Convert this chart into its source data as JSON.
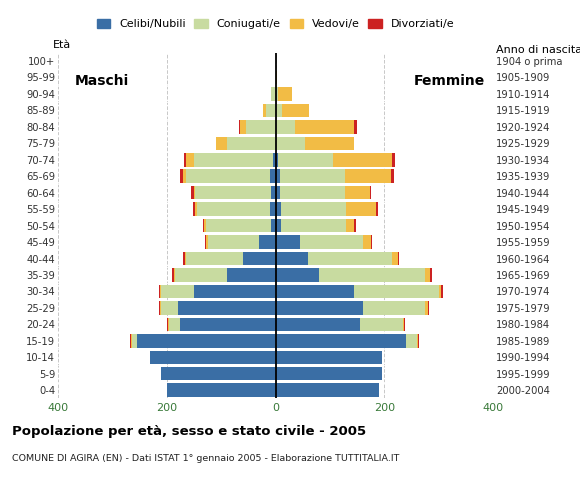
{
  "age_groups": [
    "0-4",
    "5-9",
    "10-14",
    "15-19",
    "20-24",
    "25-29",
    "30-34",
    "35-39",
    "40-44",
    "45-49",
    "50-54",
    "55-59",
    "60-64",
    "65-69",
    "70-74",
    "75-79",
    "80-84",
    "85-89",
    "90-94",
    "95-99",
    "100+"
  ],
  "birth_years": [
    "2000-2004",
    "1995-1999",
    "1990-1994",
    "1985-1989",
    "1980-1984",
    "1975-1979",
    "1970-1974",
    "1965-1969",
    "1960-1964",
    "1955-1959",
    "1950-1954",
    "1945-1949",
    "1940-1944",
    "1935-1939",
    "1930-1934",
    "1925-1929",
    "1920-1924",
    "1915-1919",
    "1910-1914",
    "1905-1909",
    "1904 o prima"
  ],
  "male_celibi": [
    200,
    210,
    230,
    255,
    175,
    180,
    150,
    90,
    60,
    30,
    8,
    10,
    8,
    10,
    5,
    0,
    0,
    0,
    0,
    0,
    0
  ],
  "male_coniugati": [
    0,
    0,
    0,
    8,
    20,
    30,
    60,
    95,
    105,
    95,
    120,
    135,
    140,
    155,
    145,
    90,
    55,
    18,
    8,
    0,
    0
  ],
  "male_vedovi": [
    0,
    0,
    0,
    2,
    2,
    2,
    2,
    2,
    2,
    2,
    3,
    3,
    2,
    5,
    15,
    20,
    10,
    5,
    0,
    0,
    0
  ],
  "male_divorziati": [
    0,
    0,
    0,
    2,
    2,
    3,
    3,
    3,
    3,
    3,
    3,
    3,
    5,
    5,
    3,
    0,
    3,
    0,
    0,
    0,
    0
  ],
  "female_celibi": [
    190,
    195,
    195,
    240,
    155,
    160,
    145,
    80,
    60,
    45,
    10,
    10,
    8,
    8,
    5,
    0,
    0,
    0,
    0,
    0,
    0
  ],
  "female_coniugati": [
    0,
    0,
    0,
    20,
    80,
    115,
    155,
    195,
    155,
    115,
    120,
    120,
    120,
    120,
    100,
    55,
    35,
    12,
    5,
    0,
    0
  ],
  "female_vedovi": [
    0,
    0,
    0,
    2,
    2,
    5,
    5,
    10,
    10,
    15,
    15,
    55,
    45,
    85,
    110,
    90,
    110,
    50,
    25,
    3,
    0
  ],
  "female_divorziati": [
    0,
    0,
    0,
    2,
    2,
    2,
    3,
    3,
    3,
    3,
    3,
    3,
    3,
    5,
    5,
    0,
    5,
    0,
    0,
    0,
    0
  ],
  "color_celibi": "#3a6ea5",
  "color_coniugati": "#c8dba0",
  "color_vedovi": "#f2bc45",
  "color_divorziati": "#cc2222",
  "title": "Popolazione per età, sesso e stato civile - 2005",
  "subtitle": "COMUNE DI AGIRA (EN) - Dati ISTAT 1° gennaio 2005 - Elaborazione TUTTITALIA.IT",
  "xlim": 400,
  "background_color": "#ffffff",
  "grid_color": "#c8c8c8"
}
